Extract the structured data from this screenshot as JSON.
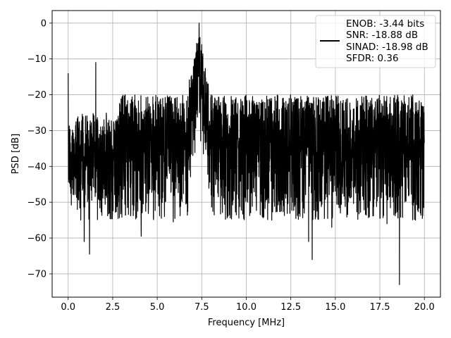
{
  "chart_data": {
    "type": "line",
    "title": "",
    "xlabel": "Frequency [MHz]",
    "ylabel": "PSD [dB]",
    "xlim": [
      -0.9,
      20.9
    ],
    "ylim": [
      -76.5,
      3.5
    ],
    "xticks": [
      0.0,
      2.5,
      5.0,
      7.5,
      10.0,
      12.5,
      15.0,
      17.5,
      20.0
    ],
    "xtick_labels": [
      "0.0",
      "2.5",
      "5.0",
      "7.5",
      "10.0",
      "12.5",
      "15.0",
      "17.5",
      "20.0"
    ],
    "yticks": [
      0,
      -10,
      -20,
      -30,
      -40,
      -50,
      -60,
      -70
    ],
    "ytick_labels": [
      "0",
      "−10",
      "−20",
      "−30",
      "−40",
      "−50",
      "−60",
      "−70"
    ],
    "grid": true,
    "legend_position": "top-right",
    "legend": [
      "ENOB: -3.44 bits",
      "SNR: -18.88 dB",
      "SINAD: -18.98 dB",
      "SFDR: 0.36"
    ],
    "series": [
      {
        "color": "#000000",
        "noise_band": {
          "x_range": [
            0.0,
            20.0
          ],
          "upper_envelope_dB": -20,
          "mean_dB": -33,
          "lower_envelope_dB": -50
        },
        "features": [
          {
            "x": 0.0,
            "y": -14.0
          },
          {
            "x": 1.55,
            "y": -11.0
          },
          {
            "x": 7.35,
            "y": 0.0
          },
          {
            "x": 7.2,
            "y": -8.0
          },
          {
            "x": 7.5,
            "y": -6.0
          },
          {
            "x": 6.9,
            "y": -15.0
          },
          {
            "x": 0.9,
            "y": -61.0
          },
          {
            "x": 1.2,
            "y": -64.5
          },
          {
            "x": 4.1,
            "y": -59.5
          },
          {
            "x": 5.9,
            "y": -55.5
          },
          {
            "x": 13.5,
            "y": -61.0
          },
          {
            "x": 13.7,
            "y": -66.0
          },
          {
            "x": 14.8,
            "y": -57.0
          },
          {
            "x": 18.6,
            "y": -73.0
          },
          {
            "x": 17.9,
            "y": -56.0
          },
          {
            "x": 19.5,
            "y": -55.0
          }
        ]
      }
    ]
  }
}
